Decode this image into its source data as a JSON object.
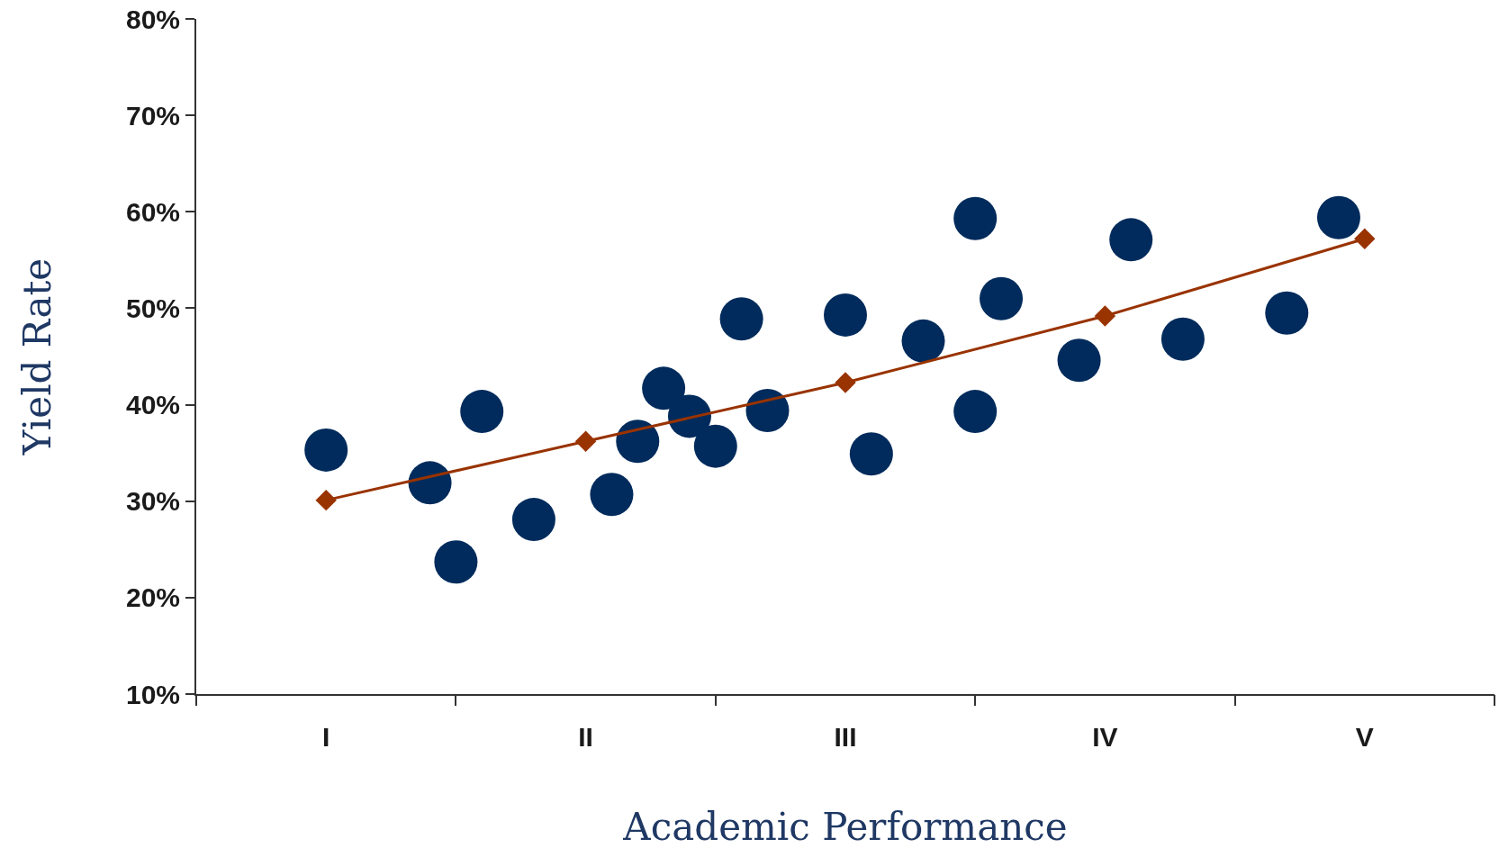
{
  "chart_data": {
    "type": "scatter",
    "xlabel": "Academic Performance",
    "ylabel": "Yield Rate",
    "categories": [
      null,
      null,
      null,
      null,
      "I",
      null,
      null,
      null,
      null,
      null,
      null,
      null,
      null,
      null,
      "II",
      null,
      null,
      null,
      null,
      null,
      null,
      null,
      null,
      null,
      "III",
      null,
      null,
      null,
      null,
      null,
      null,
      null,
      null,
      null,
      "IV",
      null,
      null,
      null,
      null,
      null,
      null,
      null,
      null,
      null,
      "V",
      null,
      null,
      null,
      null
    ],
    "ylim": [
      10,
      80
    ],
    "yticks": [
      {
        "value": 10,
        "label": "10%"
      },
      {
        "value": 20,
        "label": "20%"
      },
      {
        "value": 30,
        "label": "30%"
      },
      {
        "value": 40,
        "label": "40%"
      },
      {
        "value": 50,
        "label": "50%"
      },
      {
        "value": 60,
        "label": "60%"
      },
      {
        "value": 70,
        "label": "70%"
      },
      {
        "value": 80,
        "label": "80%"
      }
    ],
    "grid": false,
    "series": [
      {
        "type": "scatter",
        "marker": "circle",
        "color": "#002b5c",
        "values": [
          null,
          null,
          null,
          null,
          35.3,
          null,
          null,
          null,
          31.9,
          23.7,
          39.3,
          null,
          28.1,
          null,
          null,
          30.7,
          36.2,
          41.7,
          38.8,
          35.7,
          48.9,
          39.4,
          null,
          null,
          49.3,
          34.9,
          null,
          46.6,
          null,
          59.3,
          51.0,
          null,
          null,
          44.6,
          null,
          57.1,
          null,
          46.8,
          null,
          null,
          null,
          49.5,
          null,
          59.4,
          null,
          null,
          null,
          null,
          null
        ]
      },
      {
        "marker": "circle",
        "color": "#002b5c",
        "values": [
          null,
          null,
          null,
          null,
          null,
          null,
          null,
          null,
          null,
          null,
          null,
          null,
          null,
          null,
          null,
          null,
          null,
          null,
          null,
          null,
          null,
          null,
          null,
          null,
          null,
          null,
          null,
          null,
          null,
          39.3,
          null,
          null,
          null,
          null,
          null,
          null,
          null,
          null,
          null,
          null,
          null,
          null,
          null,
          null,
          null,
          null,
          null,
          null,
          null
        ]
      },
      {
        "type": "line",
        "marker": "diamond",
        "color": "#993300",
        "values": [
          null,
          null,
          null,
          null,
          30.1,
          null,
          null,
          null,
          null,
          null,
          null,
          null,
          null,
          null,
          36.2,
          null,
          null,
          null,
          null,
          null,
          null,
          null,
          null,
          null,
          42.3,
          null,
          null,
          null,
          null,
          null,
          null,
          null,
          null,
          null,
          49.2,
          null,
          null,
          null,
          null,
          null,
          null,
          null,
          null,
          null,
          57.2,
          null,
          null,
          null,
          null
        ]
      }
    ]
  }
}
